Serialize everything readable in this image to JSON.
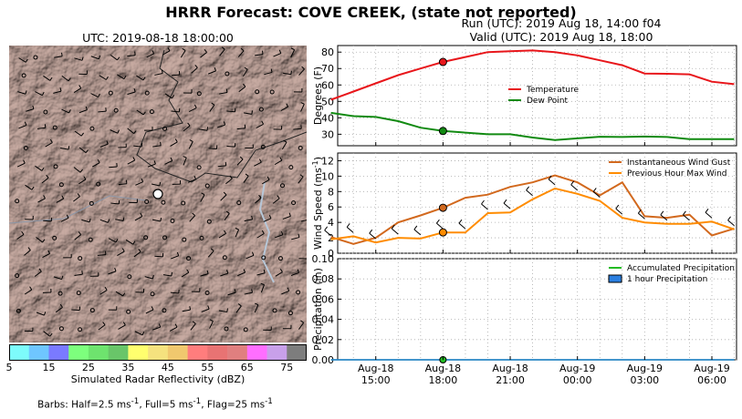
{
  "header": {
    "title": "HRRR Forecast: COVE CREEK, (state not reported)",
    "run": "Run (UTC): 2019 Aug 18, 14:00 f04",
    "valid": "Valid (UTC): 2019 Aug 18, 18:00"
  },
  "map": {
    "time_label": "UTC: 2019-08-18 18:00:00",
    "colorbar_label": "Simulated Radar Reflectivity (dBZ)",
    "colorbar_ticks": [
      "5",
      "15",
      "25",
      "35",
      "45",
      "55",
      "65",
      "75"
    ],
    "colorbar_colors": [
      "#7dfbfb",
      "#6fc6ff",
      "#7a7aff",
      "#7dff7d",
      "#6ee36e",
      "#69c569",
      "#ffff6e",
      "#f5e27e",
      "#f0c86e",
      "#ff7d7d",
      "#e87373",
      "#e07f7f",
      "#ff6eff",
      "#c8a0ea",
      "#7d7d7d"
    ],
    "barbs_note_prefix": "Barbs: Half=2.5 ms",
    "barbs_note_mid1": ", Full=5 ms",
    "barbs_note_mid2": ", Flag=25 ms",
    "barbs_exp": "-1"
  },
  "chart_data": [
    {
      "type": "line",
      "ylabel": "Degrees (F)",
      "ylim": [
        23,
        84
      ],
      "yticks": [
        30,
        40,
        50,
        60,
        70,
        80
      ],
      "x_hours": [
        13,
        14,
        15,
        16,
        17,
        18,
        19,
        20,
        21,
        22,
        23,
        24,
        25,
        26,
        27,
        28,
        29,
        30,
        31
      ],
      "series": [
        {
          "name": "Temperature",
          "color": "#e8161b",
          "values": [
            51,
            56,
            61,
            66,
            70,
            74,
            77,
            80,
            80.5,
            81,
            80,
            78,
            75,
            72,
            67,
            66.8,
            66.5,
            62,
            60.5
          ]
        },
        {
          "name": "Dew Point",
          "color": "#118a11",
          "values": [
            43,
            41,
            40.5,
            38,
            34,
            32,
            31,
            30,
            30,
            28,
            26.5,
            27.5,
            28.5,
            28.3,
            28.6,
            28.3,
            27,
            27,
            27
          ]
        }
      ],
      "marker_hour": 18,
      "legend": "center-right",
      "grid": true
    },
    {
      "type": "line",
      "ylabel": "Wind Speed (ms",
      "ylabel_exp": "-1",
      "ylabel_close": ")",
      "ylim": [
        0,
        13
      ],
      "yticks": [
        0,
        2,
        4,
        6,
        8,
        10,
        12
      ],
      "x_hours": [
        13,
        14,
        15,
        16,
        17,
        18,
        19,
        20,
        21,
        22,
        23,
        24,
        25,
        26,
        27,
        28,
        29,
        30,
        31
      ],
      "series": [
        {
          "name": "Instantaneous Wind Gust",
          "color": "#d2691e",
          "values": [
            2.1,
            1.2,
            2,
            4,
            4.9,
            5.9,
            7.2,
            7.6,
            8.6,
            9.2,
            10.1,
            9.2,
            7.5,
            9.2,
            4.8,
            4.6,
            5,
            2.3,
            3.2
          ]
        },
        {
          "name": "Previous Hour Max Wind",
          "color": "#ff8c00",
          "values": [
            1.8,
            2.2,
            1.4,
            2,
            1.9,
            2.7,
            2.7,
            5.2,
            5.3,
            7,
            8.4,
            7.7,
            6.8,
            4.6,
            4,
            3.8,
            3.8,
            4.1,
            3.1
          ]
        }
      ],
      "marker_hour": 18,
      "legend": "top-right",
      "grid": true
    },
    {
      "type": "area",
      "ylabel": "Precipitation (in)",
      "ylim": [
        0,
        0.1
      ],
      "yticks": [
        "0.00",
        "0.02",
        "0.04",
        "0.06",
        "0.08",
        "0.10"
      ],
      "x_hours": [
        13,
        14,
        15,
        16,
        17,
        18,
        19,
        20,
        21,
        22,
        23,
        24,
        25,
        26,
        27,
        28,
        29,
        30,
        31
      ],
      "series": [
        {
          "name": "Accumulated Precipitation",
          "color": "#22bb22",
          "values": [
            0,
            0,
            0,
            0,
            0,
            0,
            0,
            0,
            0,
            0,
            0,
            0,
            0,
            0,
            0,
            0,
            0,
            0,
            0
          ]
        },
        {
          "name": "1 hour Precipitation",
          "color": "#2a7fe0",
          "values": [
            0,
            0,
            0,
            0,
            0,
            0,
            0,
            0,
            0,
            0,
            0,
            0,
            0,
            0,
            0,
            0,
            0,
            0,
            0
          ]
        }
      ],
      "marker_hour": 18,
      "legend": "top-right",
      "grid": true,
      "xticks": [
        {
          "hour": 15,
          "line1": "Aug-18",
          "line2": "15:00"
        },
        {
          "hour": 18,
          "line1": "Aug-18",
          "line2": "18:00"
        },
        {
          "hour": 21,
          "line1": "Aug-18",
          "line2": "21:00"
        },
        {
          "hour": 24,
          "line1": "Aug-19",
          "line2": "00:00"
        },
        {
          "hour": 27,
          "line1": "Aug-19",
          "line2": "03:00"
        },
        {
          "hour": 30,
          "line1": "Aug-19",
          "line2": "06:00"
        }
      ]
    }
  ]
}
